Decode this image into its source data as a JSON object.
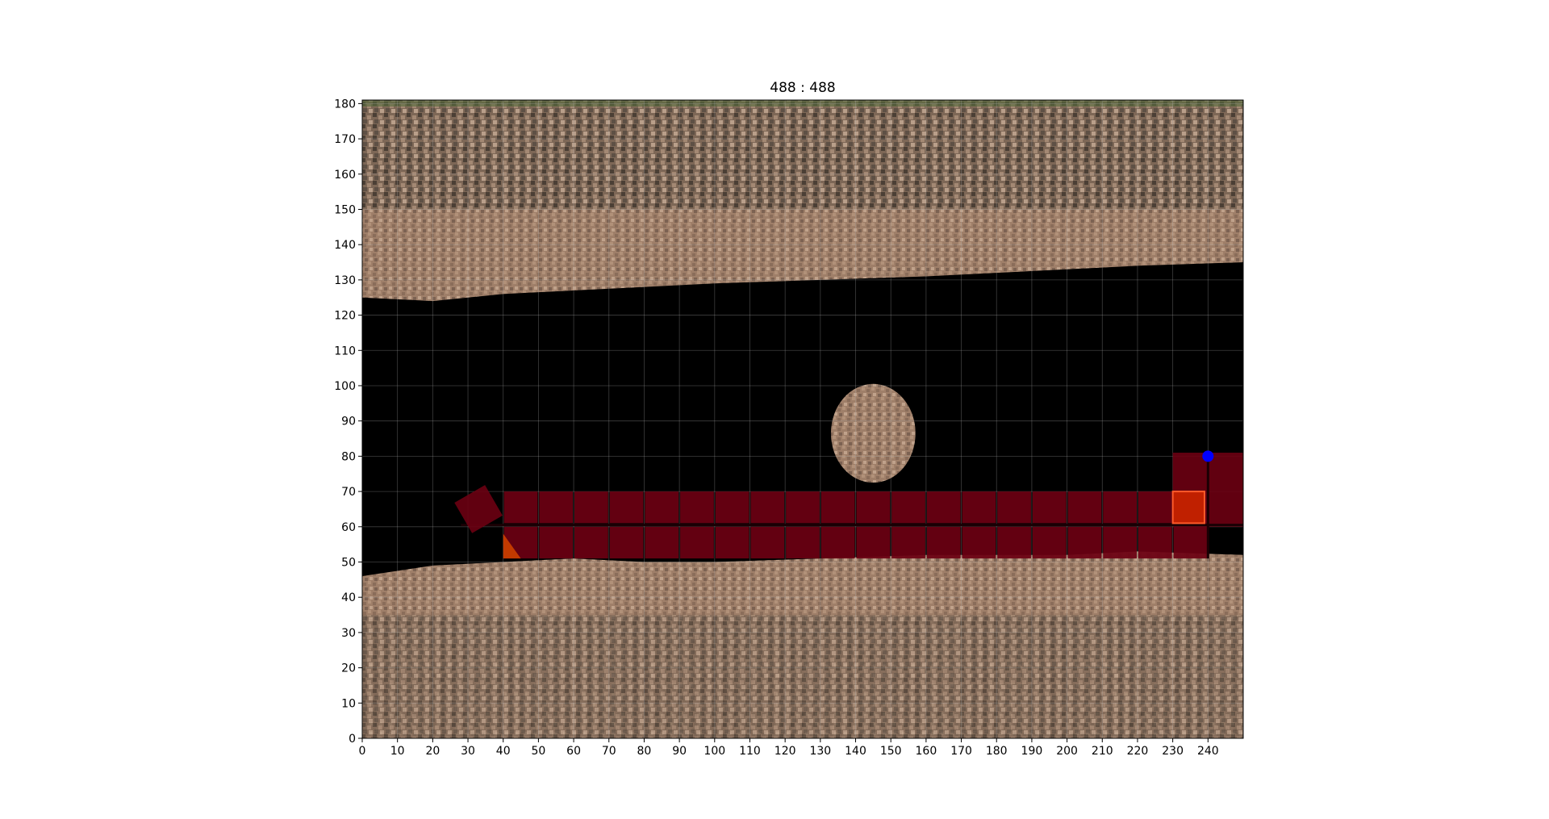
{
  "chart_data": {
    "type": "scatter",
    "title": "488 : 488",
    "xlabel": "",
    "ylabel": "",
    "xlim": [
      0,
      250
    ],
    "ylim": [
      0,
      181
    ],
    "x_ticks": [
      0,
      10,
      20,
      30,
      40,
      50,
      60,
      70,
      80,
      90,
      100,
      110,
      120,
      130,
      140,
      150,
      160,
      170,
      180,
      190,
      200,
      210,
      220,
      230,
      240
    ],
    "y_ticks": [
      0,
      10,
      20,
      30,
      40,
      50,
      60,
      70,
      80,
      90,
      100,
      110,
      120,
      130,
      140,
      150,
      160,
      170,
      180
    ],
    "grid": true,
    "background": "aerial-image",
    "road_region": {
      "lower_edge_y": [
        46,
        49,
        50,
        51,
        50,
        50,
        51,
        52,
        52,
        52,
        53,
        52
      ],
      "upper_edge_y": [
        125,
        124,
        126,
        127,
        128,
        129,
        130,
        131,
        132,
        133,
        134,
        135
      ],
      "edge_x": [
        0,
        20,
        40,
        60,
        80,
        100,
        130,
        160,
        180,
        200,
        220,
        250
      ]
    },
    "obstacle": {
      "center": [
        145,
        86.5
      ],
      "rx": 12,
      "ry": 14
    },
    "lane_cells": {
      "x_start": 40,
      "x_end": 240,
      "cell_width": 10,
      "rows": [
        [
          61,
          70
        ],
        [
          51,
          60
        ]
      ]
    },
    "end_zone": {
      "x": [
        230,
        250
      ],
      "y": [
        60,
        81
      ]
    },
    "highlight_cell": {
      "x": [
        230,
        239
      ],
      "y": [
        61,
        70
      ]
    },
    "rotated_marker": {
      "center": [
        33,
        65
      ],
      "size": 10,
      "angle": -30
    },
    "orange_tip": {
      "x": [
        40,
        45
      ],
      "y": [
        51,
        58
      ]
    },
    "points": [
      {
        "x": 240,
        "y": 80,
        "color": "#0000ff"
      }
    ],
    "colors": {
      "road": "#000000",
      "lane": "#6b0012",
      "highlight": "#c02000",
      "point": "#0000ff",
      "sand": "#a7856e",
      "vegetation": "#6b5a48"
    }
  }
}
